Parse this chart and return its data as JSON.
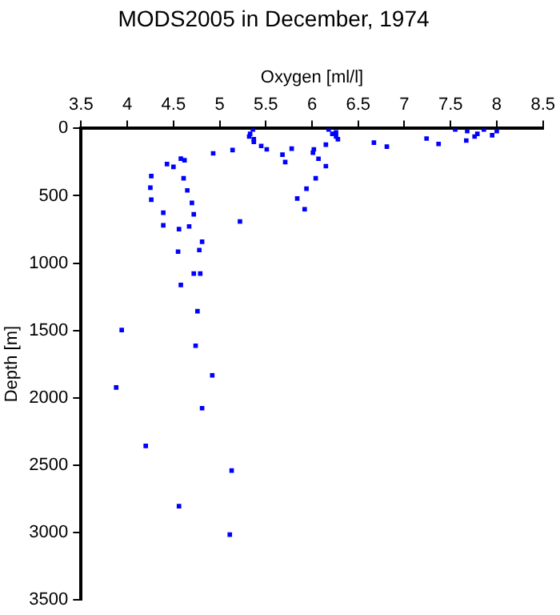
{
  "chart_data": {
    "type": "scatter",
    "title": "MODS2005 in December, 1974",
    "xlabel": "Oxygen [ml/l]",
    "ylabel": "Depth [m]",
    "xlim": [
      3.5,
      8.5
    ],
    "xticks": [
      3.5,
      4,
      4.5,
      5,
      5.5,
      6,
      6.5,
      7,
      7.5,
      8,
      8.5
    ],
    "ylim": [
      3500,
      0
    ],
    "yticks": [
      0,
      500,
      1000,
      1500,
      2000,
      2500,
      3000,
      3500
    ],
    "grid": false,
    "legend": false,
    "marker": "square",
    "series": [
      {
        "color": "#0000ff",
        "x": [
          5.36,
          5.33,
          5.32,
          5.37,
          5.37,
          5.45,
          5.51,
          5.14,
          4.93,
          5.68,
          5.71,
          5.78,
          6.18,
          6.22,
          6.26,
          6.28,
          6.26,
          6.15,
          6.02,
          6.01,
          6.07,
          6.15,
          6.04,
          5.94,
          5.84,
          5.92,
          6.67,
          6.81,
          7.24,
          7.37,
          7.55,
          7.68,
          7.67,
          7.76,
          7.79,
          7.86,
          7.95,
          8.0,
          4.58,
          4.62,
          4.43,
          4.5,
          4.26,
          4.25,
          4.26,
          4.61,
          4.65,
          4.7,
          4.72,
          4.39,
          4.39,
          4.56,
          4.67,
          4.81,
          5.22,
          4.55,
          4.78,
          4.72,
          4.79,
          4.58,
          4.76,
          3.94,
          4.74,
          4.92,
          3.88,
          4.81,
          4.2,
          5.13,
          4.56,
          5.11
        ],
        "values": [
          8,
          40,
          60,
          80,
          100,
          130,
          155,
          160,
          185,
          195,
          250,
          150,
          8,
          40,
          60,
          80,
          30,
          120,
          155,
          180,
          225,
          280,
          370,
          447,
          520,
          600,
          105,
          135,
          75,
          115,
          8,
          20,
          90,
          60,
          40,
          8,
          50,
          20,
          224,
          236,
          265,
          285,
          354,
          440,
          529,
          370,
          460,
          553,
          638,
          626,
          720,
          748,
          728,
          842,
          691,
          915,
          903,
          1078,
          1078,
          1163,
          1358,
          1497,
          1614,
          1834,
          1924,
          2078,
          2358,
          2541,
          2806,
          3017
        ]
      }
    ]
  }
}
